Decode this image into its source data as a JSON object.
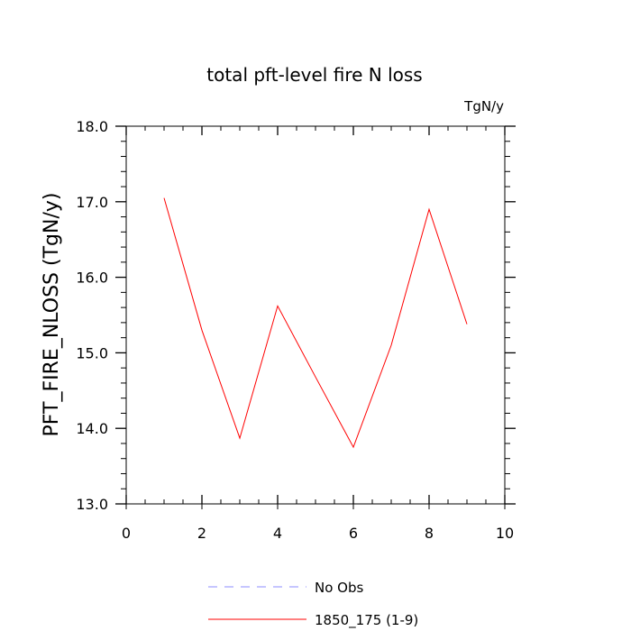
{
  "chart_data": {
    "type": "line",
    "title": "total pft-level fire N loss",
    "units_label": "TgN/y",
    "ylabel": "PFT_FIRE_NLOSS  (TgN/y)",
    "xlabel": "",
    "xlim": [
      0,
      10
    ],
    "ylim": [
      13.0,
      18.0
    ],
    "xticks": [
      0,
      2,
      4,
      6,
      8,
      10
    ],
    "xtick_labels": [
      "0",
      "2",
      "4",
      "6",
      "8",
      "10"
    ],
    "yticks": [
      13.0,
      14.0,
      15.0,
      16.0,
      17.0,
      18.0
    ],
    "ytick_labels": [
      "13.0",
      "14.0",
      "15.0",
      "16.0",
      "17.0",
      "18.0"
    ],
    "grid": false,
    "legend_position": "bottom",
    "series": [
      {
        "name": "1850_175 (1-9)",
        "color": "#ff0000",
        "dash": "solid",
        "x": [
          1,
          2,
          3,
          4,
          5,
          6,
          7,
          8,
          9
        ],
        "y": [
          17.05,
          15.3,
          13.87,
          15.62,
          14.68,
          13.75,
          15.1,
          16.9,
          15.38
        ]
      }
    ],
    "legend": [
      {
        "label": "No Obs",
        "color": "#8c8cff",
        "dash": "dashed"
      },
      {
        "label": "1850_175 (1-9)",
        "color": "#ff0000",
        "dash": "solid"
      }
    ]
  }
}
